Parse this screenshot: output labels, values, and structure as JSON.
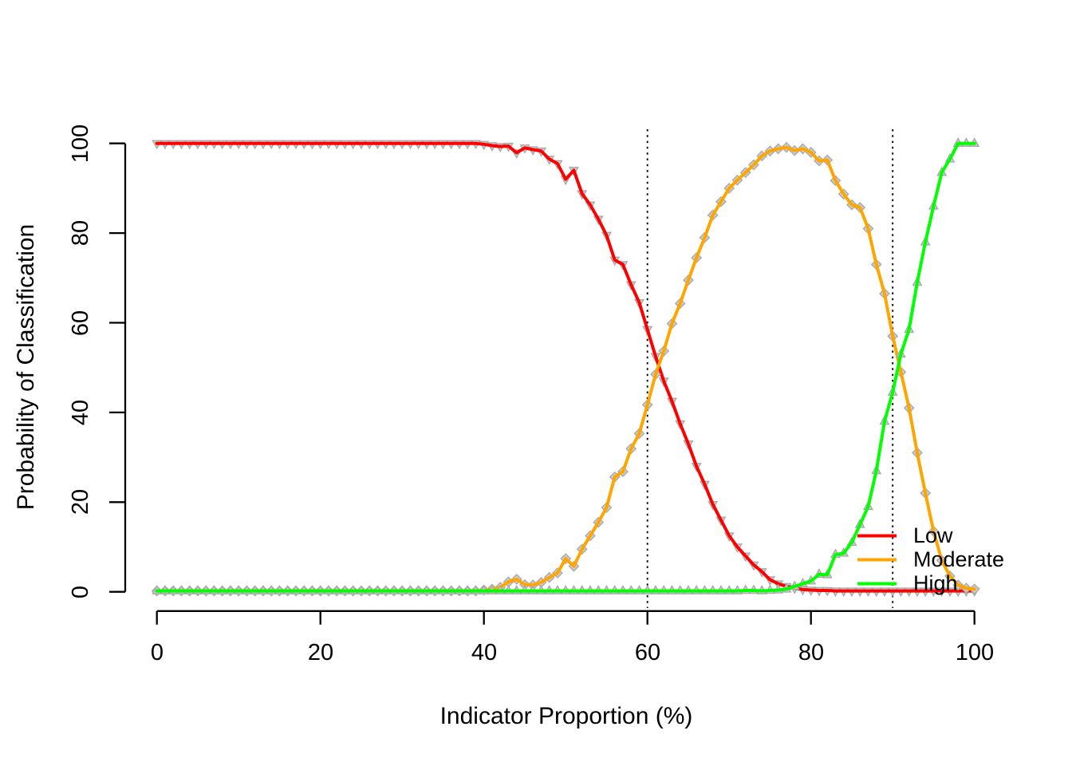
{
  "chart_data": {
    "type": "line",
    "title": "",
    "xlabel": "Indicator Proportion (%)",
    "ylabel": "Probability of Classification",
    "xlim": [
      0,
      100
    ],
    "ylim": [
      0,
      100
    ],
    "xticks": [
      0,
      20,
      40,
      60,
      80,
      100
    ],
    "yticks": [
      0,
      20,
      40,
      60,
      80,
      100
    ],
    "grid": false,
    "legend_position": "bottom-right",
    "vlines": [
      60,
      90
    ],
    "vline_style": "dotted-black",
    "marker_fill": "#cccccc",
    "marker_stroke": "#a8a8a8",
    "x_start": 0,
    "x_step": 1,
    "series": [
      {
        "name": "Low",
        "color": "#ff0000",
        "marker": "triangle-down",
        "values": [
          100,
          100,
          100,
          100,
          100,
          100,
          100,
          100,
          100,
          100,
          100,
          100,
          100,
          100,
          100,
          100,
          100,
          100,
          100,
          100,
          100,
          100,
          100,
          100,
          100,
          100,
          100,
          100,
          100,
          100,
          100,
          100,
          100,
          100,
          100,
          100,
          100,
          100,
          100,
          100,
          99.8,
          99.5,
          99.3,
          99.4,
          97.9,
          99.0,
          98.6,
          98.3,
          96.5,
          95.5,
          92.0,
          94.0,
          88.8,
          86.3,
          83.1,
          79.5,
          74.0,
          73.0,
          68.5,
          64.5,
          58.5,
          52.5,
          47.0,
          42.5,
          37.5,
          33.0,
          28.0,
          24.0,
          19.5,
          16.0,
          12.5,
          10.0,
          8.0,
          6.0,
          4.5,
          2.7,
          1.8,
          1.2,
          0.8,
          0.5,
          0.4,
          0.3,
          0.3,
          0.2,
          0.2,
          0.2,
          0.2,
          0.2,
          0.2,
          0.2,
          0.2,
          0.2,
          0.2,
          0.2,
          0.2,
          0.2,
          0.2,
          0.2,
          0.2,
          0.2,
          0.2
        ]
      },
      {
        "name": "Moderate",
        "color": "#ffa500",
        "marker": "diamond",
        "values": [
          0.2,
          0.2,
          0.2,
          0.2,
          0.2,
          0.2,
          0.2,
          0.2,
          0.2,
          0.2,
          0.2,
          0.2,
          0.2,
          0.2,
          0.2,
          0.2,
          0.2,
          0.2,
          0.2,
          0.2,
          0.2,
          0.2,
          0.2,
          0.2,
          0.2,
          0.2,
          0.2,
          0.2,
          0.2,
          0.2,
          0.2,
          0.2,
          0.2,
          0.2,
          0.2,
          0.2,
          0.2,
          0.2,
          0.2,
          0.2,
          0.4,
          0.6,
          1.0,
          2.2,
          2.8,
          1.6,
          1.5,
          2.1,
          3.2,
          4.2,
          7.4,
          5.7,
          9.5,
          12.5,
          15.5,
          18.8,
          25.6,
          26.8,
          31.9,
          35.3,
          41.7,
          48.5,
          53.7,
          59.8,
          64.3,
          69.5,
          74.5,
          79.0,
          84.0,
          87.0,
          90.0,
          91.8,
          93.5,
          95.2,
          97.2,
          98.3,
          98.8,
          99.1,
          98.4,
          98.8,
          98.0,
          96.1,
          96.3,
          91.7,
          88.7,
          86.3,
          85.7,
          81.0,
          73.0,
          66.5,
          57.0,
          49.0,
          41.0,
          31.0,
          22.0,
          13.5,
          7.0,
          3.5,
          1.5,
          0.8,
          0.6
        ]
      },
      {
        "name": "High",
        "color": "#00ff00",
        "marker": "triangle-up",
        "values": [
          0.2,
          0.2,
          0.2,
          0.2,
          0.2,
          0.2,
          0.2,
          0.2,
          0.2,
          0.2,
          0.2,
          0.2,
          0.2,
          0.2,
          0.2,
          0.2,
          0.2,
          0.2,
          0.2,
          0.2,
          0.2,
          0.2,
          0.2,
          0.2,
          0.2,
          0.2,
          0.2,
          0.2,
          0.2,
          0.2,
          0.2,
          0.2,
          0.2,
          0.2,
          0.2,
          0.2,
          0.2,
          0.2,
          0.2,
          0.2,
          0.2,
          0.2,
          0.2,
          0.2,
          0.2,
          0.2,
          0.2,
          0.2,
          0.2,
          0.2,
          0.2,
          0.2,
          0.2,
          0.2,
          0.2,
          0.2,
          0.2,
          0.2,
          0.2,
          0.2,
          0.2,
          0.2,
          0.2,
          0.2,
          0.2,
          0.2,
          0.2,
          0.2,
          0.2,
          0.2,
          0.2,
          0.2,
          0.3,
          0.3,
          0.2,
          0.3,
          0.4,
          0.6,
          1.2,
          1.8,
          2.4,
          3.9,
          3.8,
          8.3,
          8.6,
          11.0,
          15.0,
          19.0,
          27.0,
          38.0,
          44.5,
          53.0,
          58.5,
          69.0,
          78.0,
          86.0,
          93.5,
          96.5,
          100,
          100,
          100
        ]
      }
    ]
  }
}
